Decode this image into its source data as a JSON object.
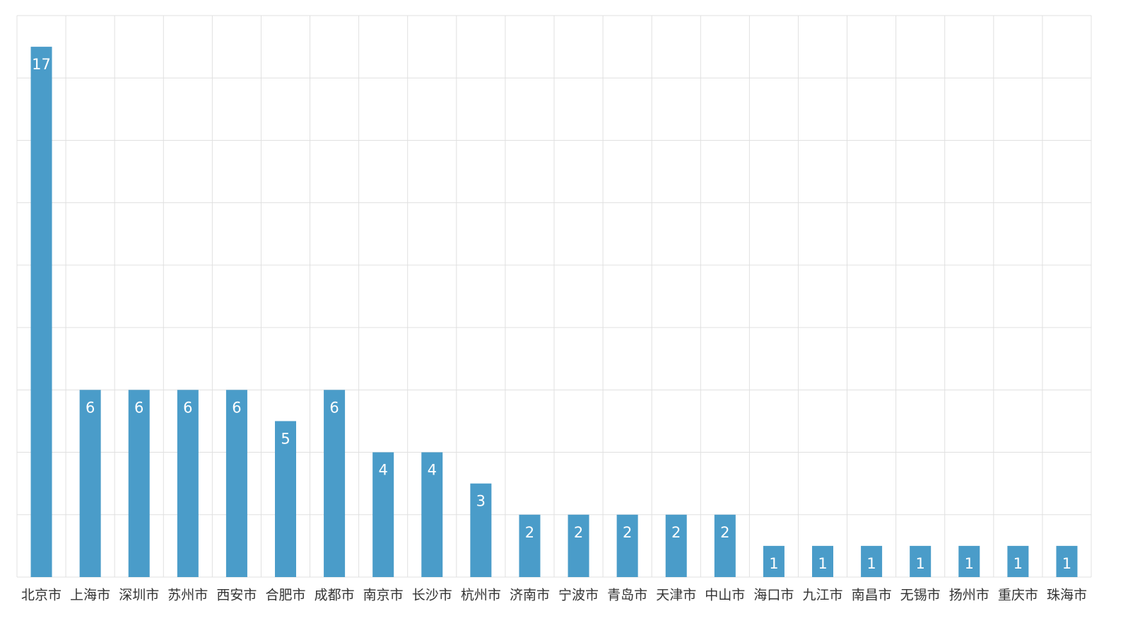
{
  "chart_data": {
    "type": "bar",
    "categories": [
      "北京市",
      "上海市",
      "深圳市",
      "苏州市",
      "西安市",
      "合肥市",
      "成都市",
      "南京市",
      "长沙市",
      "杭州市",
      "济南市",
      "宁波市",
      "青岛市",
      "天津市",
      "中山市",
      "海口市",
      "九江市",
      "南昌市",
      "无锡市",
      "扬州市",
      "重庆市",
      "珠海市"
    ],
    "values": [
      17,
      6,
      6,
      6,
      6,
      5,
      6,
      4,
      4,
      3,
      2,
      2,
      2,
      2,
      2,
      1,
      1,
      1,
      1,
      1,
      1,
      1
    ],
    "color": "#4a9cc9",
    "ylim": [
      0,
      18
    ],
    "yticks": [
      0,
      2,
      4,
      6,
      8,
      10,
      12,
      14,
      16,
      18
    ],
    "grid": true
  }
}
